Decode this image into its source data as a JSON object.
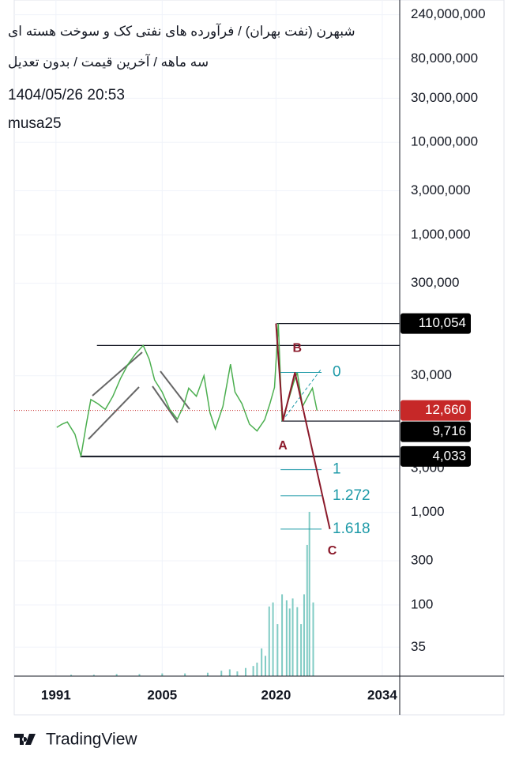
{
  "chart_data": {
    "type": "line",
    "title": "شبهرن (نفت بهران) / فرآورده های نفتی کک و سوخت هسته ای",
    "subtitle": "سه ماهه / آخرین قیمت / بدون تعدیل",
    "date": "1404/05/26 20:53",
    "author": "musa25",
    "ylog": true,
    "grid": true,
    "xlim": [
      1985.5,
      2036.3
    ],
    "xticks": [
      1991,
      2005,
      2020,
      2034
    ],
    "ylim": [
      17,
      346000000
    ],
    "yticks": [
      {
        "value": 240000000,
        "label": "240,000,000"
      },
      {
        "value": 80000000,
        "label": "80,000,000"
      },
      {
        "value": 30000000,
        "label": "30,000,000"
      },
      {
        "value": 10000000,
        "label": "10,000,000"
      },
      {
        "value": 3000000,
        "label": "3,000,000"
      },
      {
        "value": 1000000,
        "label": "1,000,000"
      },
      {
        "value": 300000,
        "label": "300,000"
      },
      {
        "value": 30000,
        "label": "30,000"
      },
      {
        "value": 3000,
        "label": "3,000"
      },
      {
        "value": 1000,
        "label": "1,000"
      },
      300,
      100,
      35
    ],
    "y2lim": [
      0,
      100
    ],
    "price": {
      "color": "#4caf50",
      "x": [
        1991.1,
        1991.8,
        1992.5,
        1993.5,
        1994.3,
        1995.0,
        1995.6,
        1996.5,
        1997.5,
        1998.5,
        1999.5,
        2000.5,
        2001.5,
        2002.5,
        2003.3,
        2004.0,
        2005.0,
        2006.0,
        2007.0,
        2007.8,
        2008.5,
        2009.5,
        2010.5,
        2011.3,
        2012.0,
        2013.0,
        2014.0,
        2014.6,
        2015.5,
        2016.5,
        2017.5,
        2018.5,
        2019.2,
        2019.8,
        2020.3,
        2020.8,
        2021.5,
        2022.3,
        2022.8,
        2023.5,
        2024.2,
        2024.8,
        2025.4
      ],
      "values": [
        8300,
        9000,
        9500,
        7000,
        4033,
        9000,
        16600,
        15000,
        13000,
        18000,
        28000,
        40000,
        52000,
        63800,
        45000,
        27000,
        20000,
        13000,
        10200,
        14000,
        22000,
        18000,
        30000,
        12000,
        8000,
        14000,
        40000,
        20000,
        15000,
        9000,
        7600,
        10000,
        15000,
        22500,
        110054,
        9716,
        15000,
        25000,
        32600,
        14000,
        18000,
        22000,
        12660
      ]
    },
    "volume": {
      "axis": "y2",
      "color": "#80cbc4",
      "x": [
        1993,
        1996,
        1999,
        2002,
        2005,
        2008,
        2011,
        2012.8,
        2013.9,
        2014.9,
        2016.0,
        2017.0,
        2017.5,
        2018.1,
        2018.6,
        2019.1,
        2019.6,
        2020.2,
        2020.8,
        2021.4,
        2021.8,
        2022.2,
        2022.8,
        2023.3,
        2023.7,
        2024.1,
        2024.4,
        2024.9
      ],
      "values": [
        0.2,
        0.2,
        0.3,
        0.3,
        0.4,
        0.4,
        0.5,
        0.8,
        1.0,
        0.7,
        1.2,
        1.5,
        2.0,
        4.1,
        3.0,
        10.3,
        10.9,
        7.7,
        12.1,
        11.2,
        10.0,
        11.5,
        10.2,
        7.7,
        12.1,
        19.4,
        24.3,
        10.9
      ]
    },
    "hlines": [
      {
        "value": 110054,
        "from": 2020.1
      },
      {
        "value": 63800,
        "from": 1996.4
      },
      {
        "value": 9716,
        "from": 2020.7
      },
      {
        "value": 4033,
        "from": 1994.2
      }
    ],
    "price_labels": [
      {
        "value": 110054,
        "label": "110,054",
        "color": "#000000"
      },
      {
        "value": 12660,
        "label": "12,660",
        "color": "#c62828",
        "dotted": true
      },
      {
        "value": 9716,
        "label": "9,716",
        "color": "#000000"
      },
      {
        "value": 4033,
        "label": "4,033",
        "color": "#000000"
      }
    ],
    "wave": {
      "color": "#8b1a2b",
      "x": [
        2020.0,
        2020.9,
        2022.5,
        2027.1
      ],
      "values": [
        110054,
        9716,
        32600,
        660
      ]
    },
    "wave_labels": [
      {
        "text": "A",
        "x": 2020.9,
        "value": 5200
      },
      {
        "text": "B",
        "x": 2022.8,
        "value": 58800
      },
      {
        "text": "C",
        "x": 2027.4,
        "value": 380
      }
    ],
    "fib_color": "#1e9aa8",
    "fib_range": [
      2020.6,
      2026.0
    ],
    "fib_levels": [
      {
        "label": "0",
        "value": 32600
      },
      {
        "label": "1",
        "value": 2900
      },
      {
        "label": "1.272",
        "value": 1510
      },
      {
        "label": "1.618",
        "value": 660
      }
    ],
    "fib_trend": {
      "x": [
        2020.8,
        2026.0
      ],
      "values": [
        9716,
        36000
      ]
    },
    "footer": "TradingView"
  }
}
